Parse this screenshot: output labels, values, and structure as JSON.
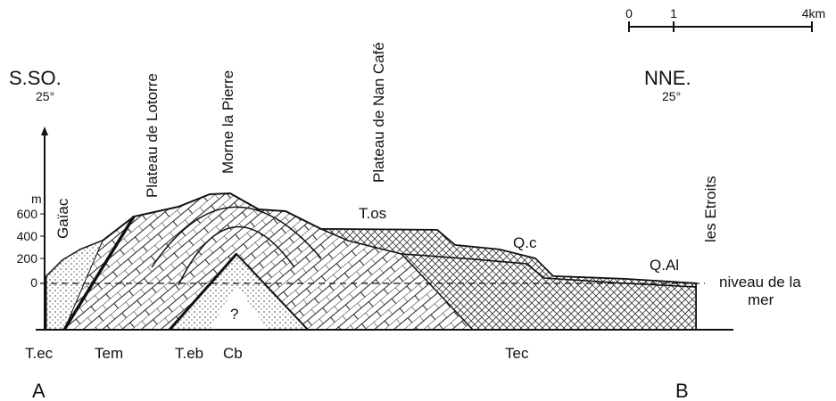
{
  "orientation": {
    "left": {
      "label": "S.SO.",
      "dip": "25°"
    },
    "right": {
      "label": "NNE.",
      "dip": "25°"
    }
  },
  "scale": {
    "ticks": [
      "0",
      "1",
      "4km"
    ]
  },
  "localities": [
    "Plateau de Lotorre",
    "Morne la Pierre",
    "Plateau de Nan Café",
    "Gaïac",
    "les Etroits"
  ],
  "elevation": {
    "unit": "m",
    "ticks": [
      "600",
      "400",
      "200",
      "0"
    ]
  },
  "formations": [
    "T.os",
    "Q.c",
    "Q.Al",
    "?"
  ],
  "sea_level": [
    "niveau de la",
    "mer"
  ],
  "base_labels": [
    "T.ec",
    "Tem",
    "T.eb",
    "Cb",
    "Tec"
  ],
  "section_ends": [
    "A",
    "B"
  ]
}
